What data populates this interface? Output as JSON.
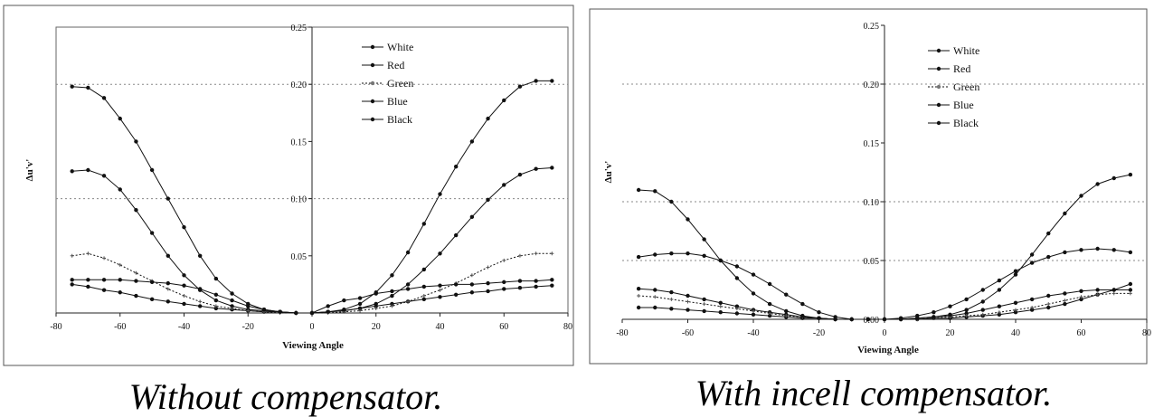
{
  "chart_data": [
    {
      "type": "line",
      "caption": "Without compensator.",
      "xlabel": "Viewing Angle",
      "ylabel": "Δu'v'",
      "xlim": [
        -80,
        80
      ],
      "ylim": [
        0,
        0.25
      ],
      "x_ticks": [
        "-80",
        "-60",
        "-40",
        "-20",
        "0",
        "20",
        "40",
        "60",
        "80"
      ],
      "y_ticks": [
        "0.05",
        "0.10",
        "0.15",
        "0.20",
        "0.25"
      ],
      "grid": "horizontal dotted at 0.10 and 0.20",
      "legend": "top-right",
      "x": [
        -75,
        -70,
        -65,
        -60,
        -55,
        -50,
        -45,
        -40,
        -35,
        -30,
        -25,
        -20,
        -15,
        -10,
        -5,
        0,
        5,
        10,
        15,
        20,
        25,
        30,
        35,
        40,
        45,
        50,
        55,
        60,
        65,
        70,
        75
      ],
      "series": [
        {
          "name": "White",
          "values": [
            0.025,
            0.023,
            0.02,
            0.018,
            0.015,
            0.012,
            0.01,
            0.008,
            0.006,
            0.004,
            0.003,
            0.002,
            0.001,
            0.001,
            0.0,
            0.0,
            0.001,
            0.002,
            0.004,
            0.006,
            0.008,
            0.01,
            0.012,
            0.014,
            0.016,
            0.018,
            0.019,
            0.021,
            0.022,
            0.023,
            0.024
          ]
        },
        {
          "name": "Red",
          "values": [
            0.124,
            0.125,
            0.12,
            0.108,
            0.09,
            0.07,
            0.05,
            0.033,
            0.02,
            0.011,
            0.006,
            0.003,
            0.002,
            0.001,
            0.0,
            0.0,
            0.001,
            0.002,
            0.004,
            0.008,
            0.015,
            0.025,
            0.038,
            0.052,
            0.068,
            0.084,
            0.099,
            0.112,
            0.121,
            0.126,
            0.127
          ]
        },
        {
          "name": "Green",
          "values": [
            0.05,
            0.052,
            0.048,
            0.042,
            0.035,
            0.028,
            0.021,
            0.015,
            0.01,
            0.006,
            0.004,
            0.002,
            0.001,
            0.0,
            0.0,
            0.0,
            0.0,
            0.001,
            0.002,
            0.004,
            0.006,
            0.01,
            0.015,
            0.02,
            0.026,
            0.033,
            0.04,
            0.046,
            0.05,
            0.052,
            0.052
          ]
        },
        {
          "name": "Blue",
          "values": [
            0.198,
            0.197,
            0.188,
            0.17,
            0.15,
            0.125,
            0.1,
            0.075,
            0.05,
            0.03,
            0.017,
            0.008,
            0.003,
            0.001,
            0.0,
            0.0,
            0.001,
            0.003,
            0.008,
            0.018,
            0.033,
            0.053,
            0.078,
            0.104,
            0.128,
            0.15,
            0.17,
            0.186,
            0.198,
            0.203,
            0.203
          ]
        },
        {
          "name": "Black",
          "values": [
            0.029,
            0.029,
            0.029,
            0.029,
            0.028,
            0.027,
            0.026,
            0.024,
            0.021,
            0.016,
            0.011,
            0.006,
            0.003,
            0.001,
            0.0,
            0.0,
            0.006,
            0.011,
            0.013,
            0.017,
            0.019,
            0.021,
            0.023,
            0.024,
            0.025,
            0.025,
            0.026,
            0.027,
            0.028,
            0.028,
            0.029
          ]
        }
      ]
    },
    {
      "type": "line",
      "caption": "With incell compensator.",
      "xlabel": "Viewing Angle",
      "ylabel": "Δu'v'",
      "xlim": [
        -80,
        80
      ],
      "ylim": [
        0,
        0.25
      ],
      "x_ticks": [
        "-80",
        "-60",
        "-40",
        "-20",
        "0",
        "20",
        "40",
        "60",
        "80"
      ],
      "y_ticks": [
        "0.00",
        "0.05",
        "0.10",
        "0.15",
        "0.20",
        "0.25"
      ],
      "grid": "horizontal dotted at 0.05, 0.10 and 0.20",
      "legend": "top-right",
      "x": [
        -75,
        -70,
        -65,
        -60,
        -55,
        -50,
        -45,
        -40,
        -35,
        -30,
        -25,
        -20,
        -15,
        -10,
        -5,
        0,
        5,
        10,
        15,
        20,
        25,
        30,
        35,
        40,
        45,
        50,
        55,
        60,
        65,
        70,
        75
      ],
      "series": [
        {
          "name": "White",
          "values": [
            0.01,
            0.01,
            0.009,
            0.008,
            0.007,
            0.006,
            0.005,
            0.004,
            0.003,
            0.002,
            0.001,
            0.001,
            0.0,
            0.0,
            0.0,
            0.0,
            0.0,
            0.0,
            0.001,
            0.001,
            0.002,
            0.003,
            0.004,
            0.006,
            0.008,
            0.01,
            0.013,
            0.017,
            0.021,
            0.025,
            0.03
          ]
        },
        {
          "name": "Red",
          "values": [
            0.026,
            0.025,
            0.023,
            0.02,
            0.017,
            0.014,
            0.011,
            0.008,
            0.006,
            0.004,
            0.002,
            0.001,
            0.0,
            0.0,
            0.0,
            0.0,
            0.0,
            0.001,
            0.002,
            0.003,
            0.005,
            0.008,
            0.011,
            0.014,
            0.017,
            0.02,
            0.022,
            0.024,
            0.025,
            0.025,
            0.025
          ]
        },
        {
          "name": "Green",
          "values": [
            0.02,
            0.019,
            0.017,
            0.015,
            0.013,
            0.011,
            0.009,
            0.007,
            0.005,
            0.003,
            0.002,
            0.001,
            0.0,
            0.0,
            0.0,
            0.0,
            0.0,
            0.0,
            0.001,
            0.002,
            0.003,
            0.004,
            0.006,
            0.008,
            0.01,
            0.013,
            0.016,
            0.019,
            0.021,
            0.022,
            0.022
          ]
        },
        {
          "name": "Blue",
          "values": [
            0.11,
            0.109,
            0.1,
            0.085,
            0.068,
            0.05,
            0.035,
            0.022,
            0.013,
            0.007,
            0.003,
            0.001,
            0.0,
            0.0,
            0.0,
            0.0,
            0.0,
            0.001,
            0.002,
            0.004,
            0.008,
            0.015,
            0.025,
            0.038,
            0.055,
            0.073,
            0.09,
            0.105,
            0.115,
            0.12,
            0.123
          ]
        },
        {
          "name": "Black",
          "values": [
            0.053,
            0.055,
            0.056,
            0.056,
            0.054,
            0.05,
            0.045,
            0.038,
            0.03,
            0.021,
            0.013,
            0.006,
            0.002,
            0.0,
            0.0,
            0.0,
            0.001,
            0.003,
            0.006,
            0.011,
            0.017,
            0.025,
            0.033,
            0.041,
            0.048,
            0.053,
            0.057,
            0.059,
            0.06,
            0.059,
            0.057
          ]
        }
      ]
    }
  ]
}
